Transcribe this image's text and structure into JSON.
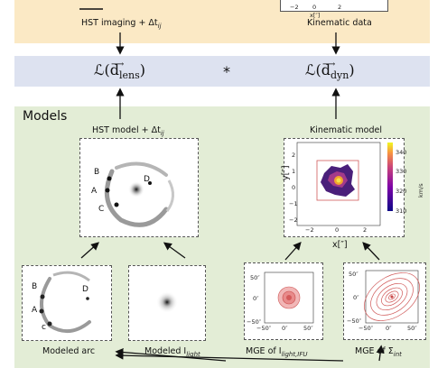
{
  "top": {
    "hst_label": "HST imaging + Δt",
    "hst_sub": "ij",
    "kin_label": "Kinematic data",
    "kin_axis_label": "x[″]",
    "kin_axis_ticks": [
      "−2",
      "0",
      "2"
    ]
  },
  "likelihood": {
    "lens": "ℒ(d",
    "lens_sub": "lens",
    "operator": "*",
    "dyn": "ℒ(d",
    "dyn_sub": "dyn",
    "close": ")"
  },
  "models": {
    "title": "Models",
    "hst_model_label": "HST model + Δt",
    "hst_model_sub": "ij",
    "kin_model_label": "Kinematic model",
    "image_letters": [
      "A",
      "B",
      "C",
      "D"
    ],
    "arc_letters": [
      "A",
      "B",
      "c",
      "D"
    ],
    "kin_axes": {
      "xlabel": "x[″]",
      "ylabel": "y[″]",
      "x_ticks": [
        "−2",
        "0",
        "2"
      ],
      "y_ticks": [
        "2",
        "1",
        "0",
        "−1",
        "−2"
      ],
      "cbar_ticks": [
        "340",
        "330",
        "320",
        "310"
      ],
      "cbar_label": "km/s"
    },
    "arc_label": "Modeled arc",
    "light_label": "Modeled I",
    "light_sub": "light",
    "mge_ifu_label": "MGE of I",
    "mge_ifu_sub": "light,IFU",
    "mge_sigma_label": "MGE of Σ",
    "mge_sigma_sub": "int",
    "mge_ticks_x": [
      "−50″",
      "0″",
      "50″"
    ],
    "mge_ticks_y": [
      "50″",
      "0″",
      "−50″"
    ]
  },
  "colors": {
    "top_band": "#fbe9c5",
    "likelihood_band": "#dde2f0",
    "models_panel": "#e3edd6"
  }
}
